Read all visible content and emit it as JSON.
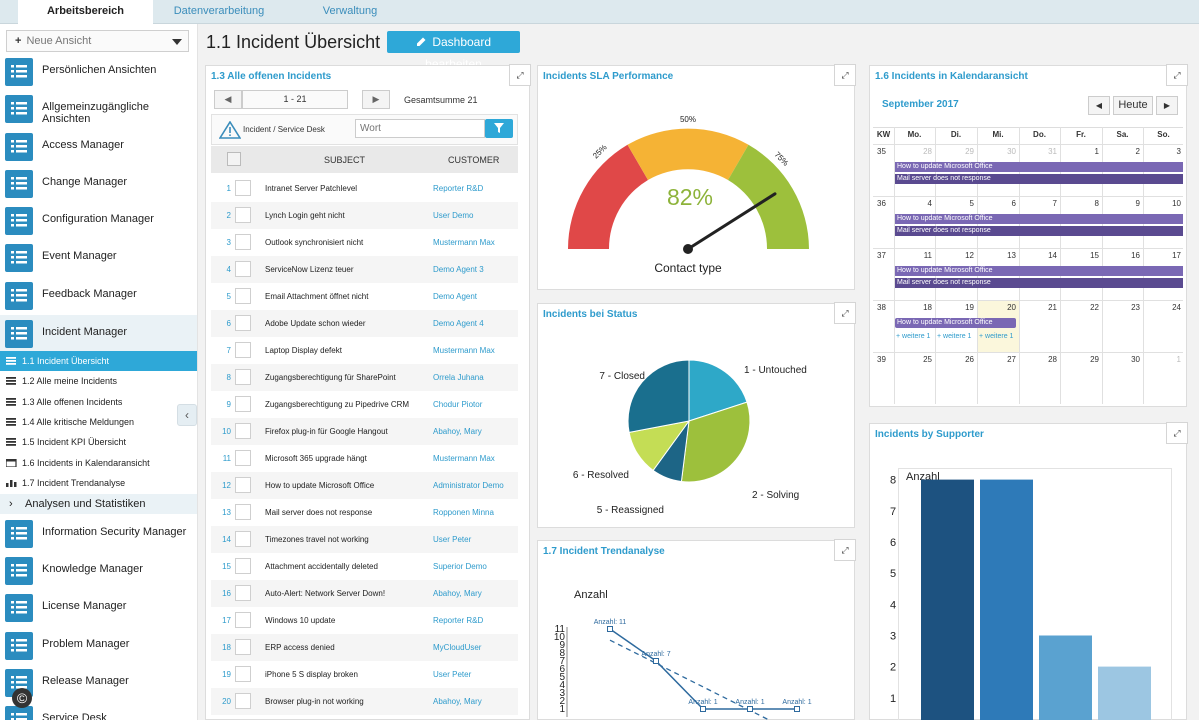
{
  "tabs": [
    {
      "label": "Arbeitsbereich"
    },
    {
      "label": "Datenverarbeitung"
    },
    {
      "label": "Verwaltung"
    }
  ],
  "sidebar": {
    "view_select": "Neue Ansicht",
    "items": [
      {
        "label": "Persönlichen Ansichten",
        "icon": "list-icon"
      },
      {
        "label": "Allgemeinzugängliche Ansichten",
        "icon": "list-icon"
      },
      {
        "label": "Access Manager",
        "icon": "list-icon"
      },
      {
        "label": "Change Manager",
        "icon": "list-icon"
      },
      {
        "label": "Configuration Manager",
        "icon": "list-icon"
      },
      {
        "label": "Event Manager",
        "icon": "list-icon"
      },
      {
        "label": "Feedback Manager",
        "icon": "list-icon"
      },
      {
        "label": "Incident Manager",
        "icon": "list-icon"
      }
    ],
    "sub_items": [
      {
        "label": "1.1 Incident Übersicht",
        "icon": "dashboard-icon"
      },
      {
        "label": "1.2 Alle meine Incidents",
        "icon": "list-icon"
      },
      {
        "label": "1.3 Alle offenen Incidents",
        "icon": "list-icon"
      },
      {
        "label": "1.4 Alle kritische Meldungen",
        "icon": "list-icon"
      },
      {
        "label": "1.5 Incident KPI Übersicht",
        "icon": "dashboard-icon"
      },
      {
        "label": "1.6 Incidents in Kalendaransicht",
        "icon": "calendar-icon"
      },
      {
        "label": "1.7 Incident Trendanalyse",
        "icon": "chart-icon"
      }
    ],
    "analysis_label": "Analysen und Statistiken",
    "items_after": [
      {
        "label": "Information Security Manager",
        "icon": "list-icon"
      },
      {
        "label": "Knowledge Manager",
        "icon": "list-icon"
      },
      {
        "label": "License Manager",
        "icon": "list-icon"
      },
      {
        "label": "Problem Manager",
        "icon": "list-icon"
      },
      {
        "label": "Release Manager",
        "icon": "list-icon"
      },
      {
        "label": "Service Desk",
        "icon": "list-icon"
      }
    ]
  },
  "page": {
    "title": "1.1 Incident Übersicht",
    "edit_button": "Dashboard bearbeiten"
  },
  "incidents": {
    "title": "1.3 Alle offenen Incidents",
    "pager": "1 - 21",
    "total": "Gesamtsumme 21",
    "filter_label": "Incident / Service Desk",
    "search_placeholder": "Wort",
    "col_subject": "SUBJECT",
    "col_customer": "CUSTOMER",
    "rows": [
      {
        "n": "1",
        "subject": "Intranet Server Patchlevel",
        "customer": "Reporter R&D"
      },
      {
        "n": "2",
        "subject": "Lynch Login geht nicht",
        "customer": "User Demo"
      },
      {
        "n": "3",
        "subject": "Outlook synchronisiert nicht",
        "customer": "Mustermann Max"
      },
      {
        "n": "4",
        "subject": "ServiceNow Lizenz teuer",
        "customer": "Demo Agent 3"
      },
      {
        "n": "5",
        "subject": "Email Attachment öffnet nicht",
        "customer": "Demo Agent"
      },
      {
        "n": "6",
        "subject": "Adobe Update schon wieder",
        "customer": "Demo Agent 4"
      },
      {
        "n": "7",
        "subject": "Laptop Display defekt",
        "customer": "Mustermann Max"
      },
      {
        "n": "8",
        "subject": "Zugangsberechtigung für SharePoint",
        "customer": "Orrela Juhana"
      },
      {
        "n": "9",
        "subject": "Zugangsberechtigung zu Pipedrive CRM",
        "customer": "Chodur Piotor"
      },
      {
        "n": "10",
        "subject": "Firefox plug-in für Google Hangout",
        "customer": "Abahoy, Mary"
      },
      {
        "n": "11",
        "subject": "Microsoft 365 upgrade hängt",
        "customer": "Mustermann Max"
      },
      {
        "n": "12",
        "subject": "How to update Microsoft Office",
        "customer": "Administrator Demo"
      },
      {
        "n": "13",
        "subject": "Mail server does not response",
        "customer": "Ropponen Minna"
      },
      {
        "n": "14",
        "subject": "Timezones travel not working",
        "customer": "User Peter"
      },
      {
        "n": "15",
        "subject": "Attachment accidentally deleted",
        "customer": "Superior Demo"
      },
      {
        "n": "16",
        "subject": "Auto-Alert: Network Server Down!",
        "customer": "Abahoy, Mary"
      },
      {
        "n": "17",
        "subject": "Windows 10 update",
        "customer": "Reporter R&D"
      },
      {
        "n": "18",
        "subject": "ERP access denied",
        "customer": "MyCloudUser"
      },
      {
        "n": "19",
        "subject": "iPhone 5 S display broken",
        "customer": "User Peter"
      },
      {
        "n": "20",
        "subject": "Browser plug-in not working",
        "customer": "Abahoy, Mary"
      }
    ]
  },
  "sla": {
    "title": "Incidents SLA Performance",
    "value": "82%",
    "value_pct": 82,
    "label": "Contact type",
    "t25": "25%",
    "t50": "50%",
    "t75": "75%",
    "colors": [
      "#e04848",
      "#f5b335",
      "#9dc03c"
    ]
  },
  "status": {
    "title": "Incidents bei Status"
  },
  "trend": {
    "title": "1.7 Incident Trendanalyse",
    "ylabel": "Anzahl"
  },
  "calendar": {
    "title": "1.6 Incidents in Kalendaransicht",
    "month": "September 2017",
    "today": "Heute",
    "headers": [
      "KW",
      "Mo.",
      "Di.",
      "Mi.",
      "Do.",
      "Fr.",
      "Sa.",
      "So."
    ],
    "weeks": [
      {
        "kw": "35",
        "days": [
          "28",
          "29",
          "30",
          "31",
          "1",
          "2",
          "3"
        ]
      },
      {
        "kw": "36",
        "days": [
          "4",
          "5",
          "6",
          "7",
          "8",
          "9",
          "10"
        ]
      },
      {
        "kw": "37",
        "days": [
          "11",
          "12",
          "13",
          "14",
          "15",
          "16",
          "17"
        ]
      },
      {
        "kw": "38",
        "days": [
          "18",
          "19",
          "20",
          "21",
          "22",
          "23",
          "24"
        ]
      },
      {
        "kw": "39",
        "days": [
          "25",
          "26",
          "27",
          "28",
          "29",
          "30",
          "1"
        ]
      }
    ],
    "ev1": "How to update Microsoft Office",
    "ev2": "Mail server does not response",
    "more": "+ weitere 1"
  },
  "supporter": {
    "title": "Incidents by Supporter"
  },
  "chart_data": [
    {
      "type": "pie",
      "title": "Incidents bei Status",
      "slices": [
        {
          "label": "1 - Untouched",
          "value": 20,
          "color": "#2ea8c8"
        },
        {
          "label": "2 - Solving",
          "value": 32,
          "color": "#9dc03c"
        },
        {
          "label": "5 - Reassigned",
          "value": 8,
          "color": "#1d6586"
        },
        {
          "label": "6 - Resolved",
          "value": 12,
          "color": "#c4dd55"
        },
        {
          "label": "7 - Closed",
          "value": 28,
          "color": "#1a6f8e"
        }
      ]
    },
    {
      "type": "line",
      "title": "1.7 Incident Trendanalyse",
      "ylabel": "Anzahl",
      "yticks": [
        "1",
        "2",
        "3",
        "4",
        "5",
        "6",
        "7",
        "8",
        "9",
        "10",
        "11"
      ],
      "ylim": [
        0,
        11
      ],
      "series": [
        {
          "values": [
            11,
            7,
            1,
            1,
            1
          ],
          "labels": [
            "Anzahl: 11",
            "Anzahl: 7",
            "Anzahl: 1",
            "Anzahl: 1",
            "Anzahl: 1"
          ]
        }
      ]
    },
    {
      "type": "bar",
      "title": "Incidents by Supporter",
      "ylabel": "Anzahl",
      "yticks": [
        "1",
        "2",
        "3",
        "4",
        "5",
        "6",
        "7",
        "8"
      ],
      "ylim": [
        0,
        8.5
      ],
      "values": [
        8,
        8,
        3,
        2
      ],
      "colors": [
        "#1d5280",
        "#2e7ab8",
        "#5aa2d0",
        "#9cc6e2"
      ]
    }
  ]
}
